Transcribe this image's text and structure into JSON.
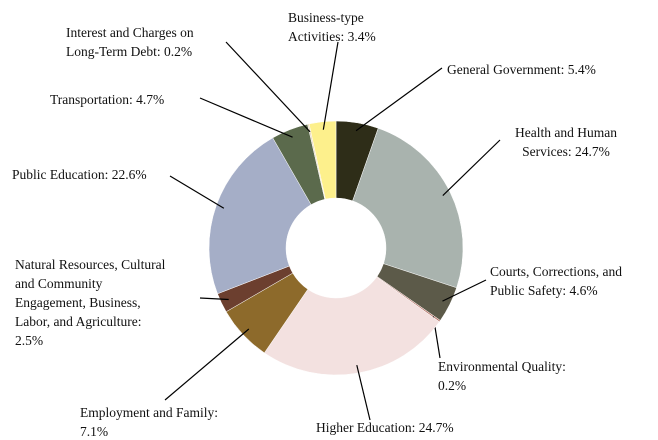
{
  "chart_data": {
    "type": "donut",
    "values": [
      5.4,
      24.7,
      4.6,
      0.2,
      24.7,
      7.1,
      2.5,
      22.6,
      4.7,
      0.2,
      3.4
    ],
    "value_labels": [
      "General Government: 5.4%",
      "Health and Human\nServices: 24.7%",
      "Courts, Corrections, and\nPublic Safety: 4.6%",
      "Environmental Quality:\n0.2%",
      "Higher Education: 24.7%",
      "Employment and Family:\n7.1%",
      "Natural Resources, Cultural\nand Community\nEngagement, Business,\nLabor, and Agriculture:\n2.5%",
      "Public Education: 22.6%",
      "Transportation: 4.7%",
      "Interest and Charges on\nLong-Term Debt: 0.2%",
      "Business-type\nActivities: 3.4%"
    ],
    "colors": [
      "#2e2d18",
      "#a9b3ae",
      "#5c5a49",
      "#b97a6e",
      "#f3e1e0",
      "#8d6a2b",
      "#6c3f2f",
      "#a5aec7",
      "#5b6a4c",
      "#ead7bd",
      "#fdf08c"
    ]
  }
}
